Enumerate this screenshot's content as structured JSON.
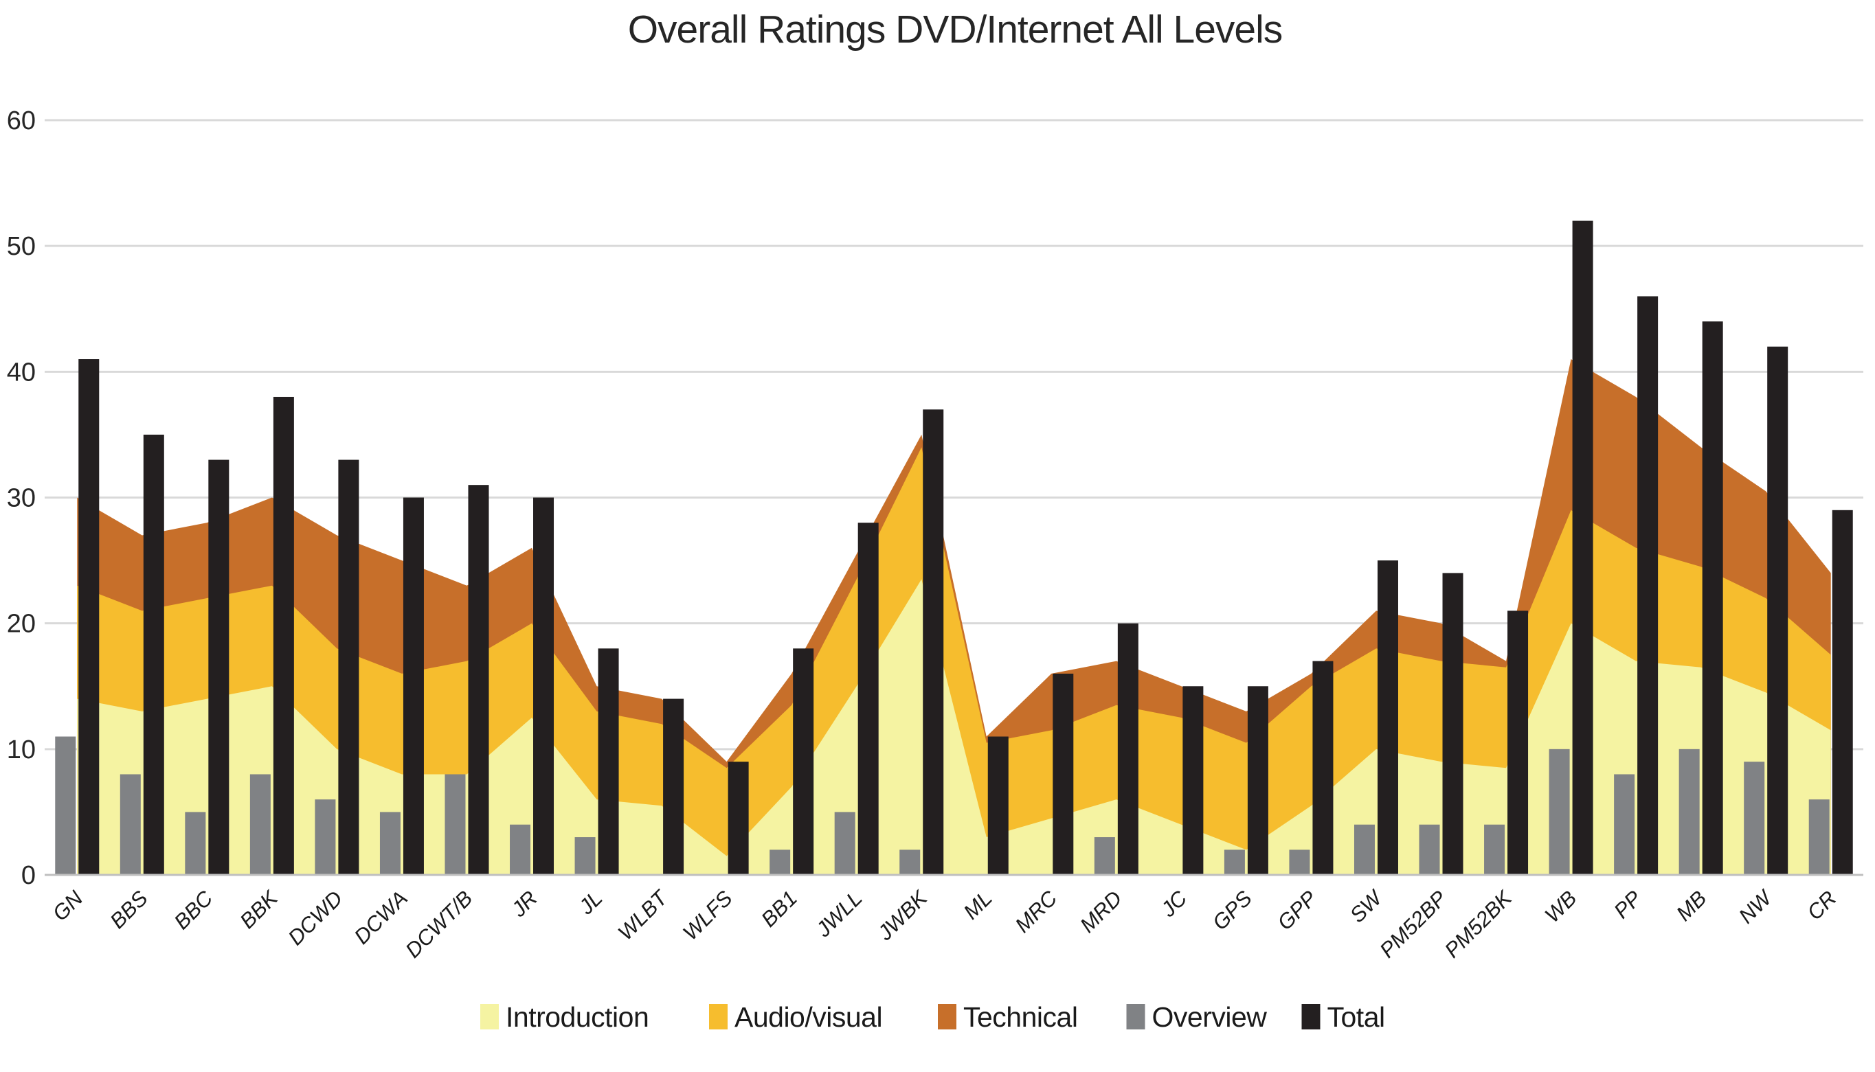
{
  "chart_data": {
    "type": "area",
    "subtype": "combo-stacked-area-with-bars",
    "title": "Overall Ratings DVD/Internet All Levels",
    "xlabel": "",
    "ylabel": "",
    "ylim": [
      0,
      60
    ],
    "y_ticks": [
      0,
      10,
      20,
      30,
      40,
      50,
      60
    ],
    "grid": true,
    "legend_position": "bottom",
    "categories": [
      "GN",
      "BBS",
      "BBC",
      "BBK",
      "DCWD",
      "DCWA",
      "DCWT/B",
      "JR",
      "JL",
      "WLBT",
      "WLFS",
      "BB1",
      "JWLL",
      "JWBK",
      "ML",
      "MRC",
      "MRD",
      "JC",
      "GPS",
      "GPP",
      "SW",
      "PM52BP",
      "PM52BK",
      "WB",
      "PP",
      "MB",
      "NW",
      "CR"
    ],
    "series": [
      {
        "name": "Introduction",
        "render": "stacked-area",
        "color": "#F5F3A2",
        "values": [
          14,
          13,
          14,
          15,
          10,
          8,
          8,
          12.5,
          6,
          5.5,
          1.5,
          7,
          15,
          23.5,
          3,
          4.5,
          6,
          4,
          2,
          5.5,
          10,
          9,
          8.5,
          20,
          17,
          16.5,
          14.5,
          11.5
        ]
      },
      {
        "name": "Audio/visual",
        "render": "stacked-area",
        "color": "#F6BD2E",
        "values": [
          9,
          8,
          8,
          8,
          8,
          8,
          9,
          7.5,
          7,
          6.5,
          7,
          6.5,
          8.5,
          10.5,
          7.5,
          7,
          7.5,
          8.5,
          8.5,
          9.5,
          8,
          8,
          8,
          9,
          9,
          8,
          7.5,
          6
        ]
      },
      {
        "name": "Technical",
        "render": "stacked-area",
        "color": "#C76F2A",
        "values": [
          7,
          6,
          6,
          7,
          9,
          9,
          6,
          6,
          2,
          2,
          0.5,
          2.5,
          2,
          1,
          0.5,
          4.5,
          3.5,
          2.5,
          2.5,
          1,
          3,
          3,
          0.5,
          12,
          12,
          9.5,
          8.5,
          6.5
        ]
      },
      {
        "name": "Overview",
        "render": "bar",
        "color": "#808285",
        "values": [
          11,
          8,
          5,
          8,
          6,
          5,
          8,
          4,
          3,
          0,
          0,
          2,
          5,
          2,
          0,
          0,
          3,
          0,
          2,
          2,
          4,
          4,
          4,
          10,
          8,
          10,
          9,
          6
        ]
      },
      {
        "name": "Total",
        "render": "bar",
        "color": "#231F20",
        "values": [
          41,
          35,
          33,
          38,
          33,
          30,
          31,
          30,
          18,
          14,
          9,
          18,
          28,
          37,
          11,
          16,
          20,
          15,
          15,
          17,
          25,
          24,
          21,
          52,
          46,
          44,
          42,
          29
        ]
      }
    ]
  },
  "colors": {
    "background": "#ffffff",
    "gridline": "#D9D9D9",
    "axis_line": "#BFBFBF",
    "title": "#262626",
    "tick_label": "#262626"
  }
}
